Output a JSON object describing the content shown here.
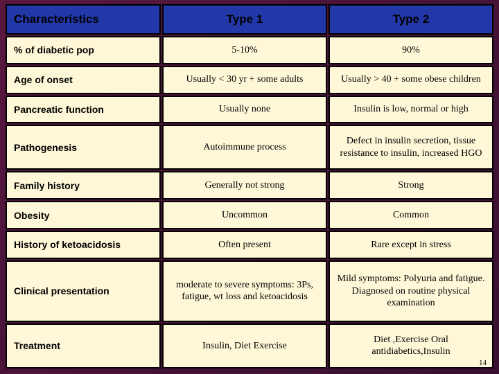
{
  "slide": {
    "page_number": "14",
    "headers": {
      "col0": "Characteristics",
      "col1": "Type 1",
      "col2": "Type 2"
    },
    "rows": [
      {
        "label": "% of diabetic pop",
        "t1": "5-10%",
        "t2": "90%"
      },
      {
        "label": "Age of onset",
        "t1": "Usually < 30 yr + some adults",
        "t2": "Usually > 40 + some obese children"
      },
      {
        "label": "Pancreatic function",
        "t1": "Usually none",
        "t2": "Insulin is low, normal or high"
      },
      {
        "label": "Pathogenesis",
        "t1": "Autoimmune process",
        "t2": "Defect in insulin secretion, tissue resistance to insulin, increased HGO"
      },
      {
        "label": "Family history",
        "t1": "Generally not strong",
        "t2": "Strong"
      },
      {
        "label": "Obesity",
        "t1": "Uncommon",
        "t2": "Common"
      },
      {
        "label": "History of ketoacidosis",
        "t1": "Often present",
        "t2": "Rare except in stress"
      },
      {
        "label": "Clinical presentation",
        "t1": "moderate to severe symptoms: 3Ps, fatigue, wt loss and ketoacidosis",
        "t2": "Mild symptoms: Polyuria and fatigue. Diagnosed on routine physical examination"
      },
      {
        "label": "Treatment",
        "t1": "Insulin, Diet Exercise",
        "t2": "Diet ,Exercise Oral antidiabetics,Insulin"
      }
    ],
    "colors": {
      "header_bg": "#2238a8",
      "cell_bg": "#fff8d8",
      "slide_bg_start": "#5a1840",
      "slide_bg_end": "#3a1030",
      "border": "#000000"
    },
    "fonts": {
      "header_family": "Verdana",
      "header_size_pt": 13,
      "label_family": "Verdana",
      "label_size_pt": 11,
      "cell_family": "Times New Roman",
      "cell_size_pt": 11
    }
  }
}
